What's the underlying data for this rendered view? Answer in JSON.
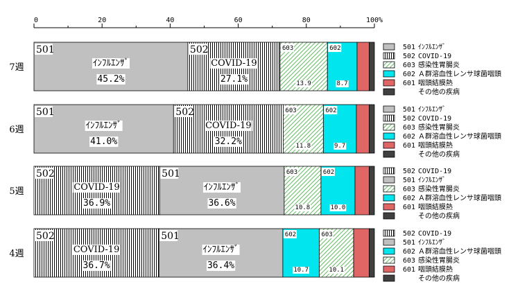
{
  "chart_data": {
    "type": "bar",
    "stacked": true,
    "orientation": "horizontal",
    "x_ticks": [
      "0",
      "20",
      "40",
      "60",
      "80",
      "100%"
    ],
    "xlim": [
      0,
      100
    ],
    "grid": false,
    "legend_placement": "right of each bar",
    "bars": [
      {
        "category": "7週",
        "segments": [
          {
            "code": "501",
            "name": "ｲﾝﾌﾙｴﾝｻﾞ",
            "value": 45.2,
            "label": "45.2%",
            "fill": "gray"
          },
          {
            "code": "502",
            "name": "COVID-19",
            "value": 27.1,
            "label": "27.1%",
            "fill": "vlines"
          },
          {
            "code": "603",
            "name": "",
            "value": 13.9,
            "label": "13.9",
            "fill": "diag"
          },
          {
            "code": "602",
            "name": "",
            "value": 8.7,
            "label": "8.7",
            "fill": "cyan"
          },
          {
            "code": "",
            "name": "",
            "value": 3.6,
            "label": "",
            "fill": "red"
          },
          {
            "code": "",
            "name": "",
            "value": 1.5,
            "label": "",
            "fill": "dark"
          }
        ],
        "legend": [
          {
            "code": "501",
            "name": "ｲﾝﾌﾙｴﾝｻﾞ",
            "fill": "gray"
          },
          {
            "code": "502",
            "name": "COVID-19",
            "fill": "vlines"
          },
          {
            "code": "603",
            "name": "感染性胃腸炎",
            "fill": "diag"
          },
          {
            "code": "602",
            "name": "Ａ群溶血性レンサ球菌咽頭",
            "fill": "cyan"
          },
          {
            "code": "601",
            "name": "咽頭結膜熱",
            "fill": "red"
          },
          {
            "code": "",
            "name": "その他の疾病",
            "fill": "dark"
          }
        ]
      },
      {
        "category": "6週",
        "segments": [
          {
            "code": "501",
            "name": "ｲﾝﾌﾙｴﾝｻﾞ",
            "value": 41.0,
            "label": "41.0%",
            "fill": "gray"
          },
          {
            "code": "502",
            "name": "COVID-19",
            "value": 32.2,
            "label": "32.2%",
            "fill": "vlines"
          },
          {
            "code": "603",
            "name": "",
            "value": 11.8,
            "label": "11.8",
            "fill": "diag"
          },
          {
            "code": "602",
            "name": "",
            "value": 9.7,
            "label": "9.7",
            "fill": "cyan"
          },
          {
            "code": "",
            "name": "",
            "value": 3.8,
            "label": "",
            "fill": "red"
          },
          {
            "code": "",
            "name": "",
            "value": 1.5,
            "label": "",
            "fill": "dark"
          }
        ],
        "legend": [
          {
            "code": "501",
            "name": "ｲﾝﾌﾙｴﾝｻﾞ",
            "fill": "gray"
          },
          {
            "code": "502",
            "name": "COVID-19",
            "fill": "vlines"
          },
          {
            "code": "603",
            "name": "感染性胃腸炎",
            "fill": "diag"
          },
          {
            "code": "602",
            "name": "Ａ群溶血性レンサ球菌咽頭",
            "fill": "cyan"
          },
          {
            "code": "601",
            "name": "咽頭結膜熱",
            "fill": "red"
          },
          {
            "code": "",
            "name": "その他の疾病",
            "fill": "dark"
          }
        ]
      },
      {
        "category": "5週",
        "segments": [
          {
            "code": "502",
            "name": "COVID-19",
            "value": 36.9,
            "label": "36.9%",
            "fill": "vlines"
          },
          {
            "code": "501",
            "name": "ｲﾝﾌﾙｴﾝｻﾞ",
            "value": 36.6,
            "label": "36.6%",
            "fill": "gray"
          },
          {
            "code": "603",
            "name": "",
            "value": 10.8,
            "label": "10.8",
            "fill": "diag"
          },
          {
            "code": "602",
            "name": "",
            "value": 10.0,
            "label": "10.0",
            "fill": "cyan"
          },
          {
            "code": "",
            "name": "",
            "value": 4.2,
            "label": "",
            "fill": "red"
          },
          {
            "code": "",
            "name": "",
            "value": 1.5,
            "label": "",
            "fill": "dark"
          }
        ],
        "legend": [
          {
            "code": "502",
            "name": "COVID-19",
            "fill": "vlines"
          },
          {
            "code": "501",
            "name": "ｲﾝﾌﾙｴﾝｻﾞ",
            "fill": "gray"
          },
          {
            "code": "603",
            "name": "感染性胃腸炎",
            "fill": "diag"
          },
          {
            "code": "602",
            "name": "Ａ群溶血性レンサ球菌咽頭",
            "fill": "cyan"
          },
          {
            "code": "601",
            "name": "咽頭結膜熱",
            "fill": "red"
          },
          {
            "code": "",
            "name": "その他の疾病",
            "fill": "dark"
          }
        ]
      },
      {
        "category": "4週",
        "segments": [
          {
            "code": "502",
            "name": "COVID-19",
            "value": 36.7,
            "label": "36.7%",
            "fill": "vlines"
          },
          {
            "code": "501",
            "name": "ｲﾝﾌﾙｴﾝｻﾞ",
            "value": 36.4,
            "label": "36.4%",
            "fill": "gray"
          },
          {
            "code": "602",
            "name": "",
            "value": 10.7,
            "label": "10.7",
            "fill": "cyan"
          },
          {
            "code": "603",
            "name": "",
            "value": 10.1,
            "label": "10.1",
            "fill": "diag"
          },
          {
            "code": "",
            "name": "",
            "value": 4.6,
            "label": "",
            "fill": "red"
          },
          {
            "code": "",
            "name": "",
            "value": 1.5,
            "label": "",
            "fill": "dark"
          }
        ],
        "legend": [
          {
            "code": "502",
            "name": "COVID-19",
            "fill": "vlines"
          },
          {
            "code": "501",
            "name": "ｲﾝﾌﾙｴﾝｻﾞ",
            "fill": "gray"
          },
          {
            "code": "602",
            "name": "Ａ群溶血性レンサ球菌咽頭",
            "fill": "cyan"
          },
          {
            "code": "603",
            "name": "感染性胃腸炎",
            "fill": "diag"
          },
          {
            "code": "601",
            "name": "咽頭結膜熱",
            "fill": "red"
          },
          {
            "code": "",
            "name": "その他の疾病",
            "fill": "dark"
          }
        ]
      }
    ],
    "colors": {
      "gray": "#c0c0c0",
      "cyan": "#00e5ee",
      "red": "#e06666",
      "dark": "#404040",
      "diag_stroke": "#66bb66",
      "vlines_stroke": "#000000"
    }
  }
}
